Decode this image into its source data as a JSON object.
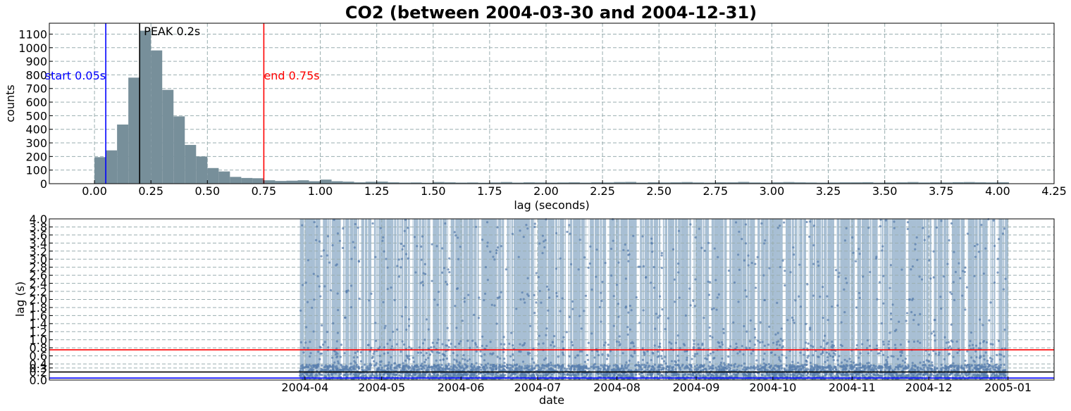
{
  "figure_title": "CO2 (between 2004-03-30 and 2004-12-31)",
  "colors": {
    "hist_bar": "#778f9a",
    "start_line": "#0000ff",
    "end_line": "#ff0000",
    "peak_line": "#000000",
    "scatter_point": "#5a7fae",
    "coverage_band": "#a8bfd4",
    "grid": "#9aaeb0"
  },
  "chart_data": [
    {
      "type": "bar",
      "subtype": "histogram",
      "xlabel": "lag (seconds)",
      "ylabel": "counts",
      "xlim": [
        -0.2,
        4.25
      ],
      "ylim": [
        0,
        1180
      ],
      "bin_width": 0.05,
      "x_ticks": [
        "0.00",
        "0.25",
        "0.50",
        "0.75",
        "1.00",
        "1.25",
        "1.50",
        "1.75",
        "2.00",
        "2.25",
        "2.50",
        "2.75",
        "3.00",
        "3.25",
        "3.50",
        "3.75",
        "4.00",
        "4.25"
      ],
      "y_ticks": [
        "0",
        "100",
        "200",
        "300",
        "400",
        "500",
        "600",
        "700",
        "800",
        "900",
        "1000",
        "1100"
      ],
      "grid": true,
      "bin_starts": [
        0.0,
        0.05,
        0.1,
        0.15,
        0.2,
        0.25,
        0.3,
        0.35,
        0.4,
        0.45,
        0.5,
        0.55,
        0.6,
        0.65,
        0.7,
        0.75,
        0.8,
        0.85,
        0.9,
        0.95,
        1.0,
        1.05,
        1.1,
        1.15,
        1.2,
        1.25,
        1.3,
        1.35,
        1.4,
        1.45,
        1.5,
        1.55,
        1.6,
        1.65,
        1.7,
        1.75,
        1.8,
        1.85,
        1.9,
        1.95,
        2.0,
        2.05,
        2.1,
        2.15,
        2.2,
        2.25,
        2.3,
        2.35,
        2.4,
        2.45,
        2.5,
        2.55,
        2.6,
        2.65,
        2.7,
        2.75,
        2.8,
        2.85,
        2.9,
        2.95,
        3.0,
        3.05,
        3.1,
        3.15,
        3.2,
        3.25,
        3.3,
        3.35,
        3.4,
        3.45,
        3.5,
        3.55,
        3.6,
        3.65,
        3.7,
        3.75,
        3.8,
        3.85,
        3.9,
        3.95,
        4.0
      ],
      "counts": [
        195,
        245,
        435,
        780,
        1125,
        980,
        690,
        495,
        285,
        200,
        115,
        90,
        50,
        42,
        40,
        25,
        20,
        22,
        25,
        18,
        30,
        18,
        15,
        10,
        14,
        15,
        10,
        8,
        9,
        7,
        12,
        10,
        8,
        9,
        7,
        9,
        12,
        8,
        10,
        9,
        8,
        9,
        10,
        8,
        10,
        9,
        12,
        13,
        8,
        10,
        9,
        10,
        12,
        9,
        8,
        10,
        10,
        13,
        9,
        8,
        10,
        12,
        10,
        9,
        8,
        9,
        10,
        10,
        11,
        8,
        9,
        10,
        12,
        9,
        10,
        9,
        11,
        12,
        10,
        9,
        10
      ],
      "annotations": [
        {
          "label": "start 0.05s",
          "x": 0.05,
          "color": "#0000ff"
        },
        {
          "label": "PEAK 0.2s",
          "x": 0.2,
          "color": "#000000"
        },
        {
          "label": "end 0.75s",
          "x": 0.75,
          "color": "#ff0000"
        }
      ]
    },
    {
      "type": "scatter",
      "xlabel": "date",
      "ylabel": "lag (s)",
      "xlim": [
        "2003-12-23",
        "2005-01-19"
      ],
      "ylim": [
        0,
        4.0
      ],
      "x_ticks": [
        {
          "label": "2004-04",
          "date": "2004-04-01"
        },
        {
          "label": "2004-05",
          "date": "2004-05-01"
        },
        {
          "label": "2004-06",
          "date": "2004-06-01"
        },
        {
          "label": "2004-07",
          "date": "2004-07-01"
        },
        {
          "label": "2004-08",
          "date": "2004-08-01"
        },
        {
          "label": "2004-09",
          "date": "2004-09-01"
        },
        {
          "label": "2004-10",
          "date": "2004-10-01"
        },
        {
          "label": "2004-11",
          "date": "2004-11-01"
        },
        {
          "label": "2004-12",
          "date": "2004-12-01"
        },
        {
          "label": "2005-01",
          "date": "2005-01-01"
        }
      ],
      "y_ticks": [
        "0.0",
        "0.2",
        "0.3",
        "0.4",
        "0.6",
        "0.8",
        "1.0",
        "1.2",
        "1.4",
        "1.6",
        "1.8",
        "2.0",
        "2.2",
        "2.4",
        "2.6",
        "2.8",
        "3.0",
        "3.2",
        "3.4",
        "3.6",
        "3.8",
        "4.0"
      ],
      "y_tick_values": [
        0.0,
        0.2,
        0.3,
        0.4,
        0.6,
        0.8,
        1.0,
        1.2,
        1.4,
        1.6,
        1.8,
        2.0,
        2.2,
        2.4,
        2.6,
        2.8,
        3.0,
        3.2,
        3.4,
        3.6,
        3.8,
        4.0
      ],
      "grid": true,
      "coverage_start": "2004-03-30",
      "coverage_end": "2004-12-31",
      "coverage_gaps": [
        "2004-04-07",
        "2004-04-15",
        "2004-04-22",
        "2004-04-27",
        "2004-05-12",
        "2004-05-20",
        "2004-05-27",
        "2004-06-08",
        "2004-06-18",
        "2004-06-30",
        "2004-07-12",
        "2004-07-20",
        "2004-07-28",
        "2004-08-09",
        "2004-08-18",
        "2004-08-30",
        "2004-09-06",
        "2004-09-13",
        "2004-09-24",
        "2004-10-05",
        "2004-10-14",
        "2004-10-25",
        "2004-11-02",
        "2004-11-11",
        "2004-11-22",
        "2004-12-02",
        "2004-12-09",
        "2004-12-15",
        "2004-12-24",
        "2004-12-27"
      ],
      "point_count": 4200,
      "horizontal_lines": [
        {
          "y": 0.05,
          "color": "#0000ff"
        },
        {
          "y": 0.2,
          "color": "#000000"
        },
        {
          "y": 0.75,
          "color": "#ff0000"
        }
      ]
    }
  ]
}
